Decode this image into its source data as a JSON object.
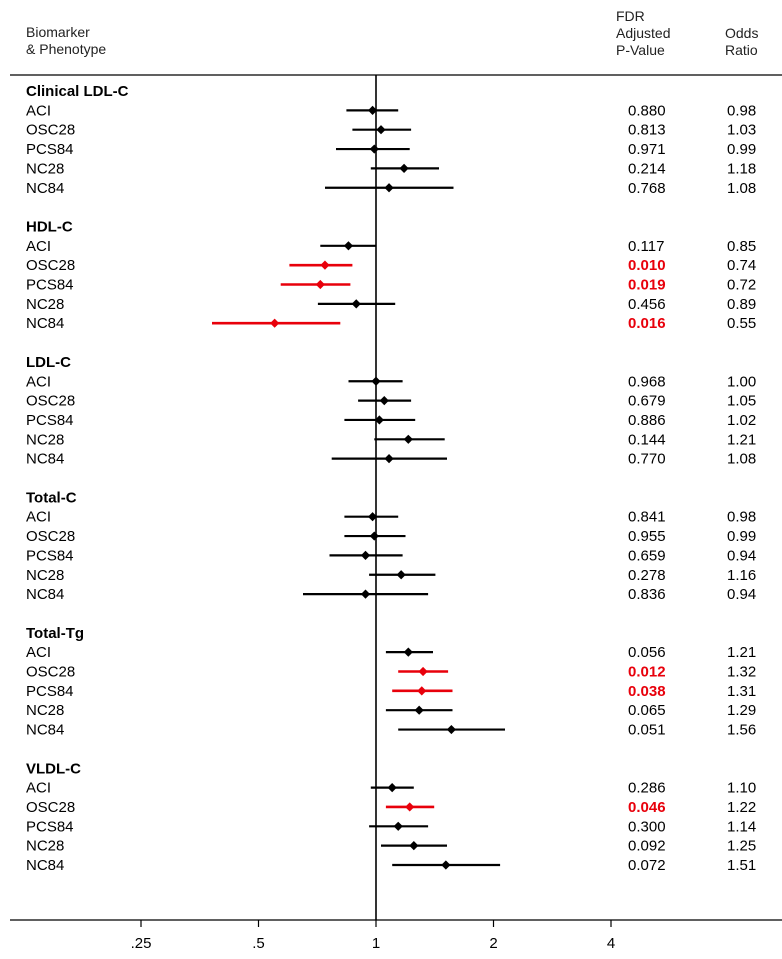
{
  "header": {
    "col1_line1": "Biomarker",
    "col1_line2": "& Phenotype",
    "col2_line1": "FDR",
    "col2_line2": "Adjusted",
    "col2_line3": "P-Value",
    "col3_line1": "Odds",
    "col3_line2": "Ratio"
  },
  "colors": {
    "normal": "#000000",
    "significant": "#e8000b"
  },
  "chart_data": {
    "type": "forest",
    "x_scale": "log2",
    "xlim": [
      0.16,
      5.8
    ],
    "reference_line": 1,
    "x_ticks": [
      {
        "value": 0.25,
        "label": ".25"
      },
      {
        "value": 0.5,
        "label": ".5"
      },
      {
        "value": 1,
        "label": "1"
      },
      {
        "value": 2,
        "label": "2"
      },
      {
        "value": 4,
        "label": "4"
      }
    ],
    "groups": [
      {
        "name": "Clinical LDL-C",
        "rows": [
          {
            "label": "ACI",
            "or": 0.98,
            "lo": 0.84,
            "hi": 1.14,
            "p": "0.880",
            "or_text": "0.98",
            "significant": false
          },
          {
            "label": "OSC28",
            "or": 1.03,
            "lo": 0.87,
            "hi": 1.23,
            "p": "0.813",
            "or_text": "1.03",
            "significant": false
          },
          {
            "label": "PCS84",
            "or": 0.99,
            "lo": 0.79,
            "hi": 1.22,
            "p": "0.971",
            "or_text": "0.99",
            "significant": false
          },
          {
            "label": "NC28",
            "or": 1.18,
            "lo": 0.97,
            "hi": 1.45,
            "p": "0.214",
            "or_text": "1.18",
            "significant": false
          },
          {
            "label": "NC84",
            "or": 1.08,
            "lo": 0.74,
            "hi": 1.58,
            "p": "0.768",
            "or_text": "1.08",
            "significant": false
          }
        ]
      },
      {
        "name": "HDL-C",
        "rows": [
          {
            "label": "ACI",
            "or": 0.85,
            "lo": 0.72,
            "hi": 1.0,
            "p": "0.117",
            "or_text": "0.85",
            "significant": false
          },
          {
            "label": "OSC28",
            "or": 0.74,
            "lo": 0.6,
            "hi": 0.87,
            "p": "0.010",
            "or_text": "0.74",
            "significant": true
          },
          {
            "label": "PCS84",
            "or": 0.72,
            "lo": 0.57,
            "hi": 0.86,
            "p": "0.019",
            "or_text": "0.72",
            "significant": true
          },
          {
            "label": "NC28",
            "or": 0.89,
            "lo": 0.71,
            "hi": 1.12,
            "p": "0.456",
            "or_text": "0.89",
            "significant": false
          },
          {
            "label": "NC84",
            "or": 0.55,
            "lo": 0.38,
            "hi": 0.81,
            "p": "0.016",
            "or_text": "0.55",
            "significant": true
          }
        ]
      },
      {
        "name": "LDL-C",
        "rows": [
          {
            "label": "ACI",
            "or": 1.0,
            "lo": 0.85,
            "hi": 1.17,
            "p": "0.968",
            "or_text": "1.00",
            "significant": false
          },
          {
            "label": "OSC28",
            "or": 1.05,
            "lo": 0.9,
            "hi": 1.23,
            "p": "0.679",
            "or_text": "1.05",
            "significant": false
          },
          {
            "label": "PCS84",
            "or": 1.02,
            "lo": 0.83,
            "hi": 1.26,
            "p": "0.886",
            "or_text": "1.02",
            "significant": false
          },
          {
            "label": "NC28",
            "or": 1.21,
            "lo": 0.99,
            "hi": 1.5,
            "p": "0.144",
            "or_text": "1.21",
            "significant": false
          },
          {
            "label": "NC84",
            "or": 1.08,
            "lo": 0.77,
            "hi": 1.52,
            "p": "0.770",
            "or_text": "1.08",
            "significant": false
          }
        ]
      },
      {
        "name": "Total-C",
        "rows": [
          {
            "label": "ACI",
            "or": 0.98,
            "lo": 0.83,
            "hi": 1.14,
            "p": "0.841",
            "or_text": "0.98",
            "significant": false
          },
          {
            "label": "OSC28",
            "or": 0.99,
            "lo": 0.83,
            "hi": 1.19,
            "p": "0.955",
            "or_text": "0.99",
            "significant": false
          },
          {
            "label": "PCS84",
            "or": 0.94,
            "lo": 0.76,
            "hi": 1.17,
            "p": "0.659",
            "or_text": "0.94",
            "significant": false
          },
          {
            "label": "NC28",
            "or": 1.16,
            "lo": 0.96,
            "hi": 1.42,
            "p": "0.278",
            "or_text": "1.16",
            "significant": false
          },
          {
            "label": "NC84",
            "or": 0.94,
            "lo": 0.65,
            "hi": 1.36,
            "p": "0.836",
            "or_text": "0.94",
            "significant": false
          }
        ]
      },
      {
        "name": "Total-Tg",
        "rows": [
          {
            "label": "ACI",
            "or": 1.21,
            "lo": 1.06,
            "hi": 1.4,
            "p": "0.056",
            "or_text": "1.21",
            "significant": false
          },
          {
            "label": "OSC28",
            "or": 1.32,
            "lo": 1.14,
            "hi": 1.53,
            "p": "0.012",
            "or_text": "1.32",
            "significant": true
          },
          {
            "label": "PCS84",
            "or": 1.31,
            "lo": 1.1,
            "hi": 1.57,
            "p": "0.038",
            "or_text": "1.31",
            "significant": true
          },
          {
            "label": "NC28",
            "or": 1.29,
            "lo": 1.06,
            "hi": 1.57,
            "p": "0.065",
            "or_text": "1.29",
            "significant": false
          },
          {
            "label": "NC84",
            "or": 1.56,
            "lo": 1.14,
            "hi": 2.14,
            "p": "0.051",
            "or_text": "1.56",
            "significant": false
          }
        ]
      },
      {
        "name": "VLDL-C",
        "rows": [
          {
            "label": "ACI",
            "or": 1.1,
            "lo": 0.97,
            "hi": 1.25,
            "p": "0.286",
            "or_text": "1.10",
            "significant": false
          },
          {
            "label": "OSC28",
            "or": 1.22,
            "lo": 1.06,
            "hi": 1.41,
            "p": "0.046",
            "or_text": "1.22",
            "significant": true
          },
          {
            "label": "PCS84",
            "or": 1.14,
            "lo": 0.96,
            "hi": 1.36,
            "p": "0.300",
            "or_text": "1.14",
            "significant": false
          },
          {
            "label": "NC28",
            "or": 1.25,
            "lo": 1.03,
            "hi": 1.52,
            "p": "0.092",
            "or_text": "1.25",
            "significant": false
          },
          {
            "label": "NC84",
            "or": 1.51,
            "lo": 1.1,
            "hi": 2.08,
            "p": "0.072",
            "or_text": "1.51",
            "significant": false
          }
        ]
      }
    ]
  }
}
